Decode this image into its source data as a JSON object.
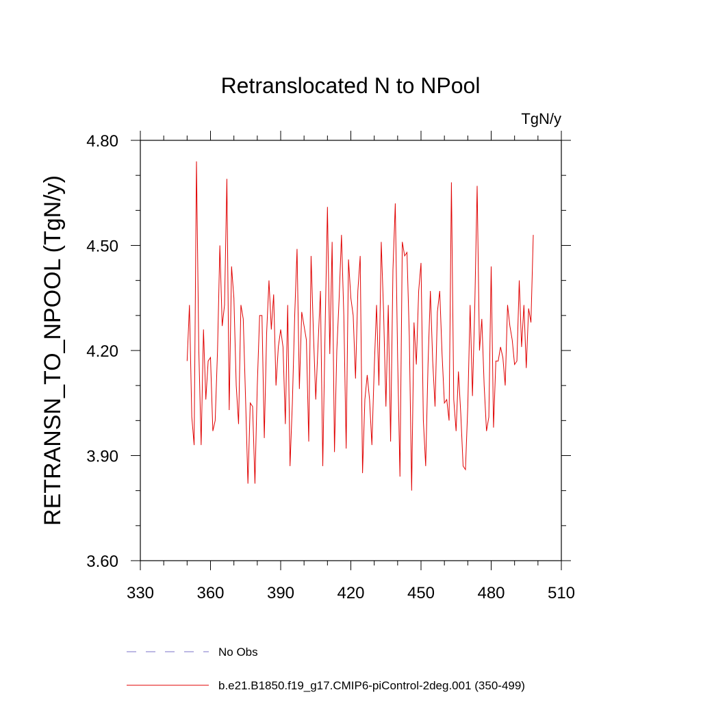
{
  "chart_data": {
    "type": "line",
    "title": "Retranslocated N to NPool",
    "units": "TgN/y",
    "ylabel": "RETRANSN_TO_NPOOL  (TgN/y)",
    "xlabel": "",
    "xlim": [
      330,
      510
    ],
    "ylim": [
      3.6,
      4.8
    ],
    "xticks": [
      "330",
      "360",
      "390",
      "420",
      "450",
      "480",
      "510"
    ],
    "yticks": [
      "3.60",
      "3.90",
      "4.20",
      "4.50",
      "4.80"
    ],
    "grid": false,
    "legend_position": "bottom",
    "legend": [
      {
        "label": "No Obs",
        "style": "dashed",
        "color": "#7a72c8"
      },
      {
        "label": "b.e21.B1850.f19_g17.CMIP6-piControl-2deg.001 (350-499)",
        "style": "solid",
        "color": "#e00000"
      }
    ],
    "series": [
      {
        "name": "b.e21.B1850.f19_g17.CMIP6-piControl-2deg.001 (350-499)",
        "color": "#e00000",
        "x_start": 350,
        "x_step": 1,
        "values": [
          4.17,
          4.33,
          4.01,
          3.93,
          4.74,
          4.2,
          3.93,
          4.26,
          4.06,
          4.17,
          4.18,
          3.97,
          4.0,
          4.2,
          4.5,
          4.27,
          4.33,
          4.69,
          4.03,
          4.44,
          4.35,
          4.1,
          3.99,
          4.33,
          4.29,
          4.06,
          3.82,
          4.05,
          4.04,
          3.82,
          4.1,
          4.3,
          4.3,
          3.95,
          4.25,
          4.4,
          4.26,
          4.36,
          4.1,
          4.21,
          4.26,
          4.21,
          3.99,
          4.33,
          3.87,
          4.05,
          4.3,
          4.49,
          4.09,
          4.31,
          4.27,
          4.23,
          3.94,
          4.47,
          4.25,
          4.06,
          4.22,
          4.37,
          3.87,
          4.26,
          4.61,
          4.19,
          4.51,
          3.91,
          4.2,
          4.35,
          4.53,
          4.3,
          3.92,
          4.46,
          4.35,
          4.3,
          4.12,
          4.37,
          4.47,
          3.85,
          4.06,
          4.13,
          4.06,
          3.93,
          4.15,
          4.33,
          4.1,
          4.51,
          4.31,
          4.04,
          4.33,
          3.94,
          4.43,
          4.62,
          4.18,
          3.84,
          4.51,
          4.47,
          4.48,
          4.24,
          3.8,
          4.28,
          4.16,
          4.37,
          4.45,
          4.0,
          3.87,
          4.16,
          4.37,
          4.17,
          4.04,
          4.31,
          4.37,
          4.19,
          4.05,
          4.06,
          4.0,
          4.68,
          4.06,
          3.97,
          4.14,
          4.02,
          3.87,
          3.86,
          4.04,
          4.33,
          4.07,
          4.33,
          4.67,
          4.2,
          4.29,
          4.1,
          3.97,
          4.01,
          4.44,
          3.98,
          4.17,
          4.17,
          4.21,
          4.18,
          4.1,
          4.33,
          4.27,
          4.23,
          4.16,
          4.17,
          4.4,
          4.21,
          4.33,
          4.15,
          4.32,
          4.28,
          4.53
        ]
      }
    ]
  }
}
